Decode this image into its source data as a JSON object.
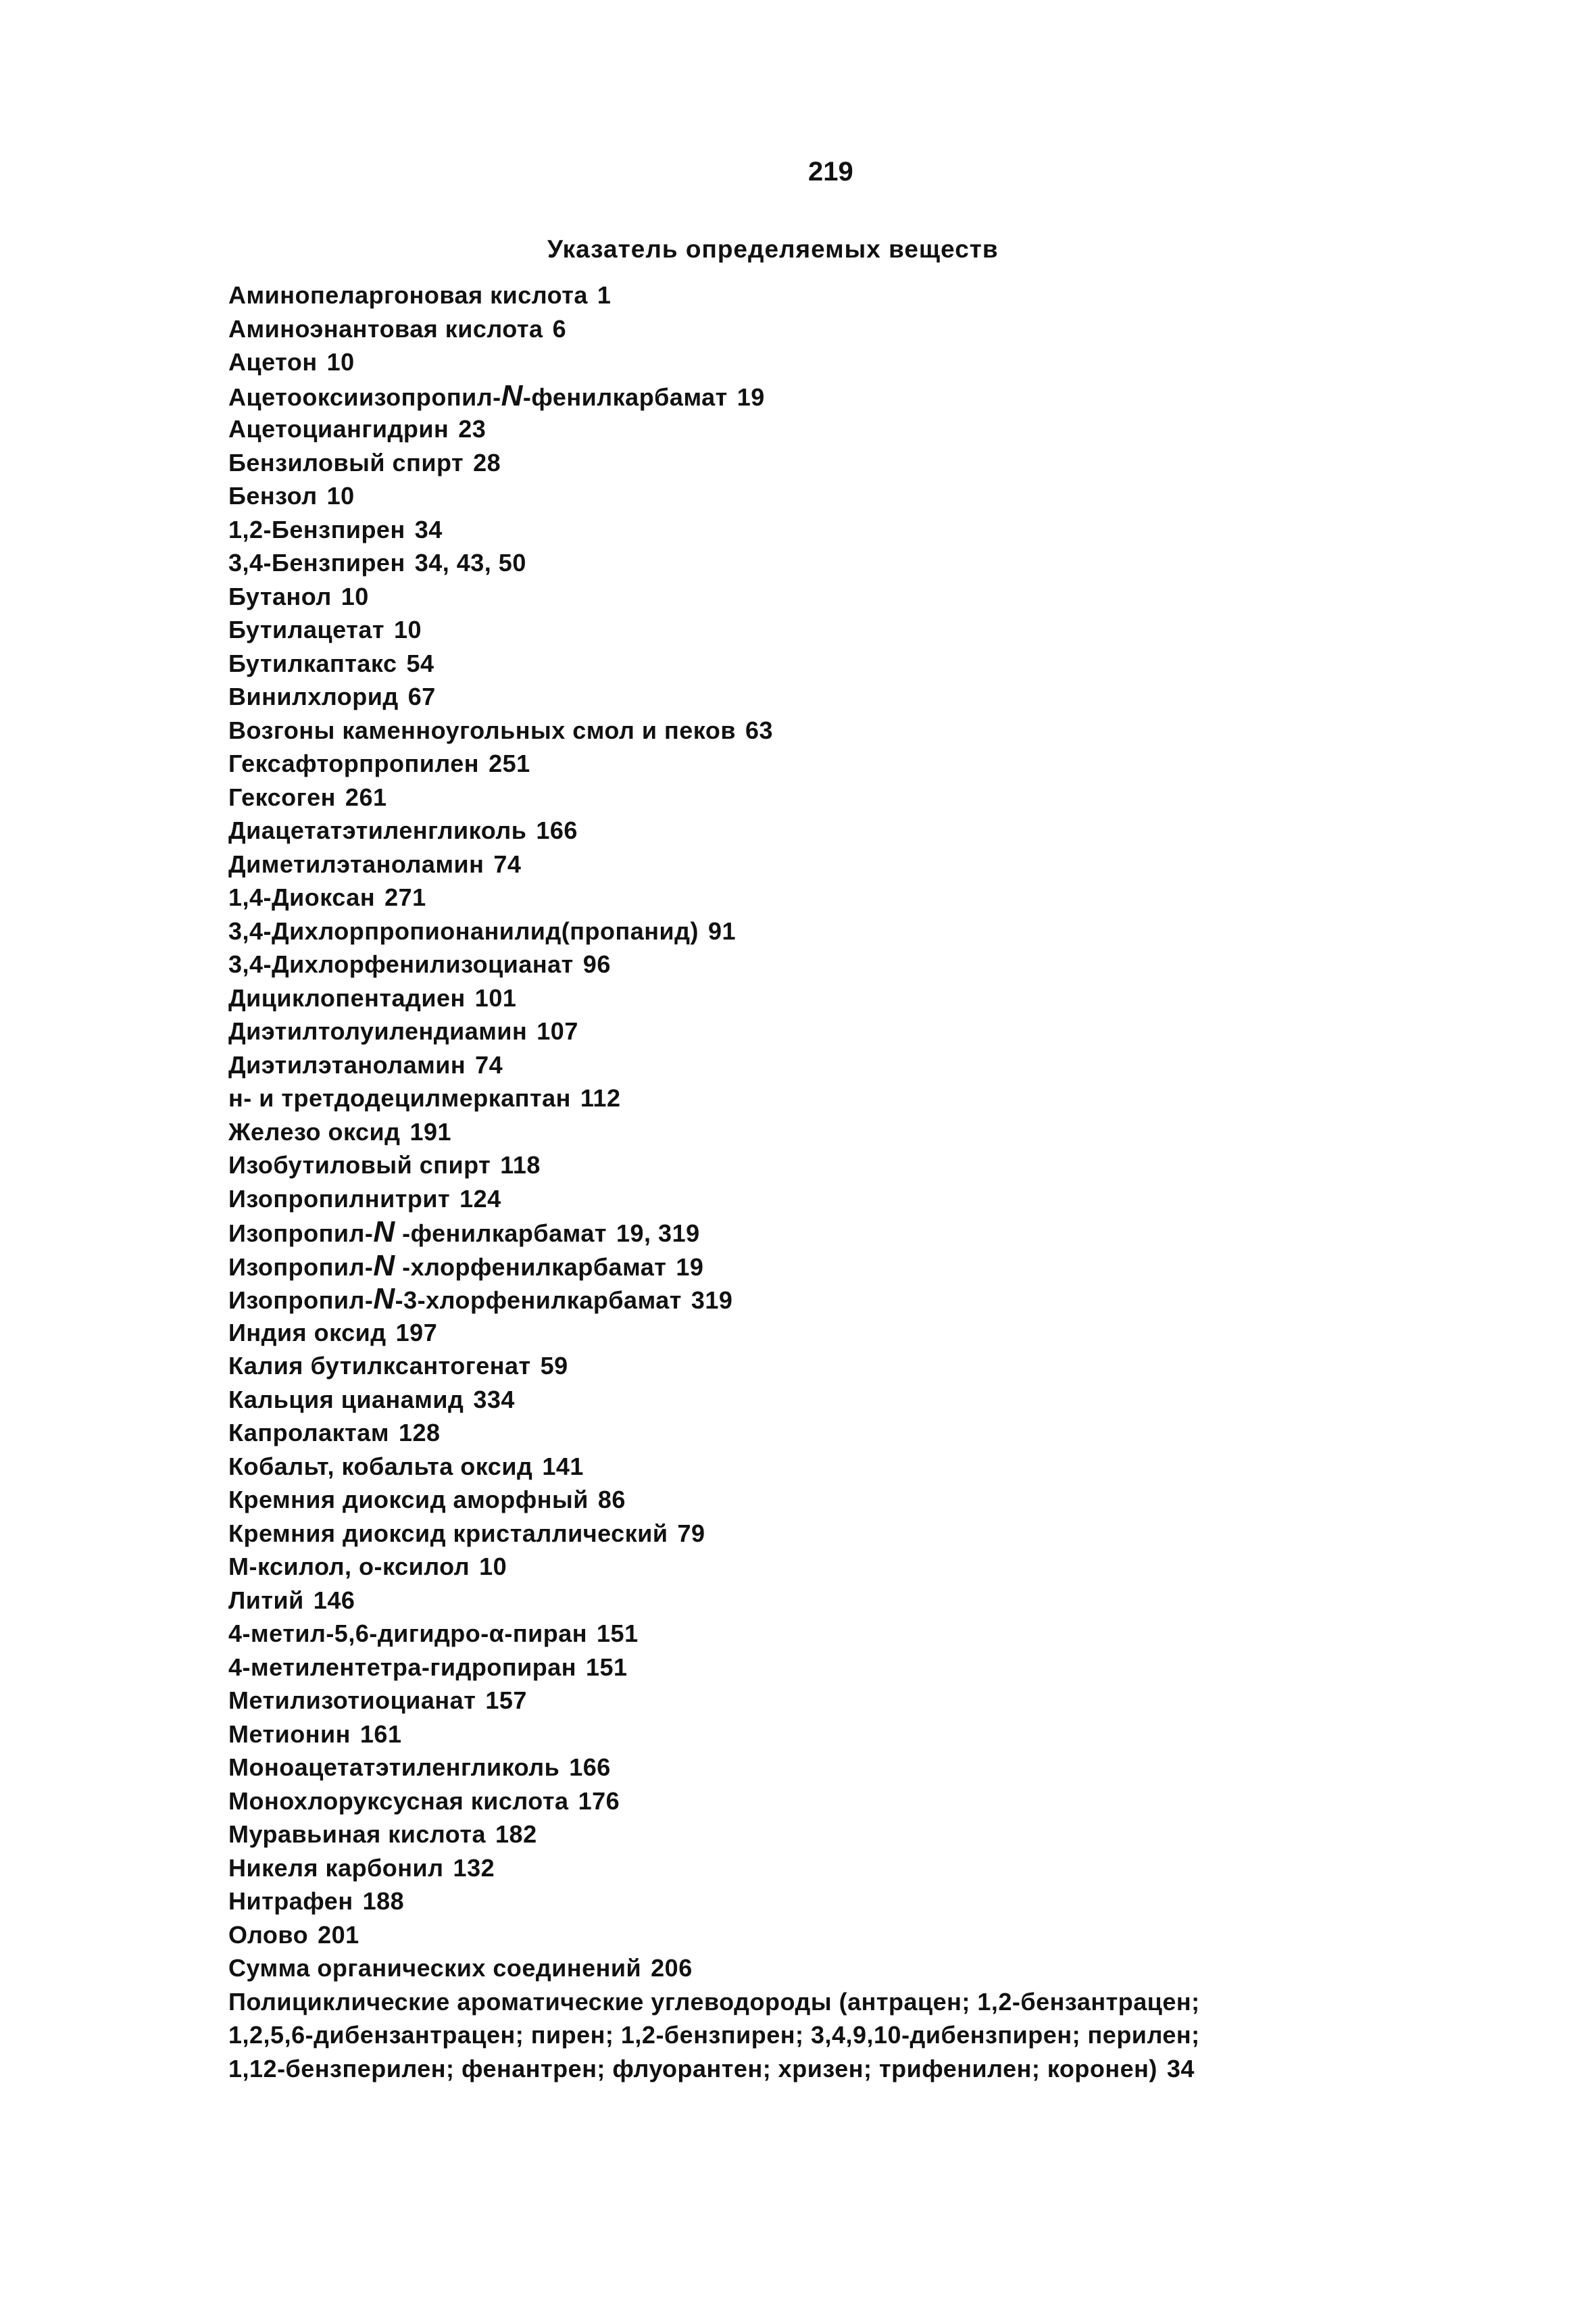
{
  "page_number": "219",
  "title": "Указатель определяемых веществ",
  "entries": [
    {
      "name": "Аминопеларгоновая кислота",
      "pages": "1"
    },
    {
      "name": "Аминоэнантовая кислота",
      "pages": "6"
    },
    {
      "name": "Ацетон",
      "pages": "10"
    },
    {
      "name": "Ацетооксиизопропил-N-фенилкарбамат",
      "pages": "19"
    },
    {
      "name": "Ацетоциангидрин",
      "pages": "23"
    },
    {
      "name": "Бензиловый спирт",
      "pages": "28"
    },
    {
      "name": "Бензол",
      "pages": "10"
    },
    {
      "name": "1,2-Бензпирен",
      "pages": "34"
    },
    {
      "name": "3,4-Бензпирен",
      "pages": "34, 43, 50"
    },
    {
      "name": "Бутанол",
      "pages": "10"
    },
    {
      "name": "Бутилацетат",
      "pages": "10"
    },
    {
      "name": "Бутилкаптакс",
      "pages": "54"
    },
    {
      "name": "Винилхлорид",
      "pages": "67"
    },
    {
      "name": "Возгоны каменноугольных смол и пеков",
      "pages": "63"
    },
    {
      "name": "Гексафторпропилен",
      "pages": "251"
    },
    {
      "name": "Гексоген",
      "pages": "261"
    },
    {
      "name": "Диацетатэтиленгликоль",
      "pages": "166"
    },
    {
      "name": "Диметилэтаноламин",
      "pages": "74"
    },
    {
      "name": "1,4-Диоксан",
      "pages": "271"
    },
    {
      "name": "3,4-Дихлорпропионанилид(пропанид)",
      "pages": "91"
    },
    {
      "name": "3,4-Дихлорфенилизоцианат",
      "pages": "96"
    },
    {
      "name": "Дициклопентадиен",
      "pages": "101"
    },
    {
      "name": "Диэтилтолуилендиамин",
      "pages": "107"
    },
    {
      "name": "Диэтилэтаноламин",
      "pages": "74"
    },
    {
      "name": "н- и третдодецилмеркаптан",
      "pages": "112"
    },
    {
      "name": "Железо оксид",
      "pages": "191"
    },
    {
      "name": "Изобутиловый спирт",
      "pages": "118"
    },
    {
      "name": "Изопропилнитрит",
      "pages": "124"
    },
    {
      "name": "Изопропил-N -фенилкарбамат",
      "pages": "19, 319"
    },
    {
      "name": "Изопропил-N -хлорфенилкарбамат",
      "pages": "19"
    },
    {
      "name": "Изопропил-N-3-хлорфенилкарбамат",
      "pages": "319"
    },
    {
      "name": "Индия оксид",
      "pages": "197"
    },
    {
      "name": "Калия бутилксантогенат",
      "pages": "59"
    },
    {
      "name": "Кальция цианамид",
      "pages": "334"
    },
    {
      "name": "Капролактам",
      "pages": "128"
    },
    {
      "name": "Кобальт, кобальта оксид",
      "pages": "141"
    },
    {
      "name": "Кремния диоксид аморфный",
      "pages": "86"
    },
    {
      "name": "Кремния диоксид кристаллический",
      "pages": "79"
    },
    {
      "name": "М-ксилол, о-ксилол",
      "pages": "10"
    },
    {
      "name": "Литий",
      "pages": "146"
    },
    {
      "name": "4-метил-5,6-дигидро-α-пиран",
      "pages": "151"
    },
    {
      "name": "4-метилентетра-гидропиран",
      "pages": "151"
    },
    {
      "name": "Метилизотиоцианат",
      "pages": "157"
    },
    {
      "name": "Метионин",
      "pages": "161"
    },
    {
      "name": "Моноацетатэтиленгликоль",
      "pages": "166"
    },
    {
      "name": "Монохлоруксусная кислота",
      "pages": "176"
    },
    {
      "name": "Муравьиная кислота",
      "pages": "182"
    },
    {
      "name": "Никеля карбонил",
      "pages": "132"
    },
    {
      "name": "Нитрафен",
      "pages": "188"
    },
    {
      "name": "Олово",
      "pages": "201"
    },
    {
      "name": "Сумма органических соединений",
      "pages": "206"
    },
    {
      "name": "Полициклические ароматические углеводороды (антрацен; 1,2-бензантрацен;",
      "pages": ""
    },
    {
      "name": "1,2,5,6-дибензантрацен; пирен; 1,2-бензпирен; 3,4,9,10-дибензпирен; перилен;",
      "pages": ""
    },
    {
      "name": "1,12-бензперилен; фенантрен; флуорантен; хризен; трифенилен; коронен)",
      "pages": "34"
    }
  ]
}
